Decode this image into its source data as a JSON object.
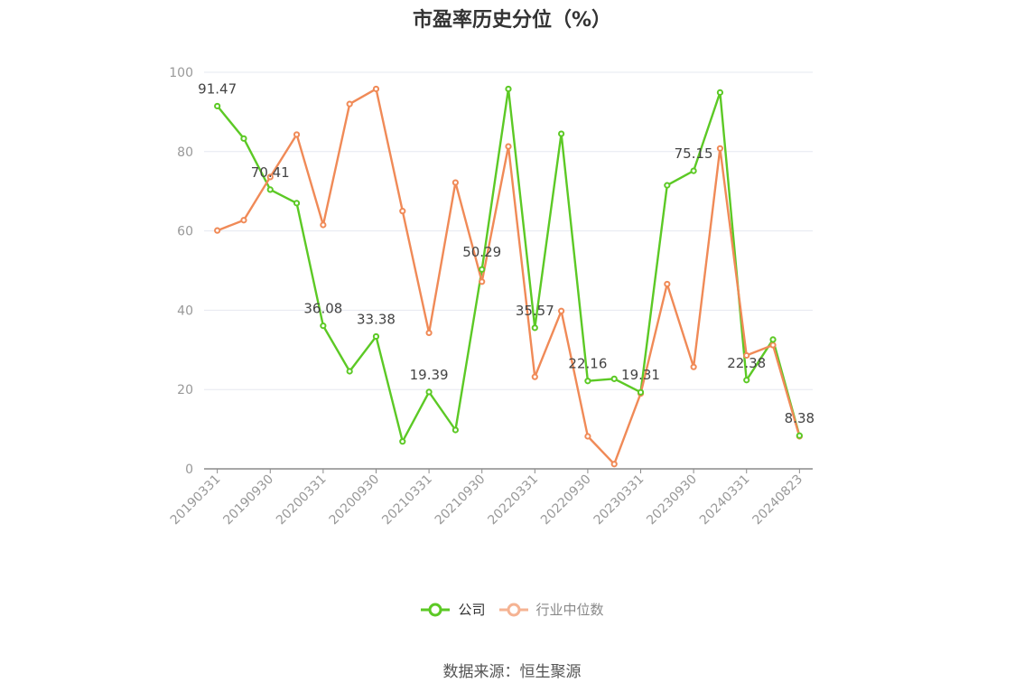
{
  "title": "市盈率历史分位（%）",
  "source": "数据来源：恒生聚源",
  "colors": {
    "company": "#5cc925",
    "industry": "#f08a57",
    "grid": "#e6e8f0",
    "axis": "#999999"
  },
  "legend": [
    {
      "label": "公司",
      "icon": "circle-line-icon"
    },
    {
      "label": "行业中位数",
      "icon": "circle-line-icon"
    }
  ],
  "chart_data": {
    "type": "line",
    "title": "市盈率历史分位（%）",
    "xlabel": "",
    "ylabel": "",
    "ylim": [
      0,
      100
    ],
    "yticks": [
      0,
      20,
      40,
      60,
      80,
      100
    ],
    "grid": true,
    "legend_position": "bottom",
    "x": [
      "20190331",
      "20190630",
      "20190930",
      "20191231",
      "20200331",
      "20200630",
      "20200930",
      "20201231",
      "20210331",
      "20210630",
      "20210930",
      "20211231",
      "20220331",
      "20220630",
      "20220930",
      "20221231",
      "20230331",
      "20230630",
      "20230930",
      "20231231",
      "20240331",
      "20240630",
      "20240823"
    ],
    "x_tick_labels": [
      "20190331",
      "20190930",
      "20200331",
      "20200930",
      "20210331",
      "20210930",
      "20220331",
      "20220930",
      "20230331",
      "20230930",
      "20240331",
      "20240823"
    ],
    "series": [
      {
        "name": "公司",
        "color": "#5cc925",
        "values": [
          91.47,
          83.3,
          70.41,
          67.0,
          36.08,
          24.6,
          33.38,
          6.9,
          19.39,
          9.8,
          50.29,
          95.8,
          35.57,
          84.5,
          22.16,
          22.7,
          19.31,
          71.5,
          75.15,
          94.9,
          22.38,
          32.6,
          8.38
        ],
        "labels": {
          "0": "91.47",
          "2": "70.41",
          "4": "36.08",
          "6": "33.38",
          "8": "19.39",
          "10": "50.29",
          "12": "35.57",
          "14": "22.16",
          "16": "19.31",
          "18": "75.15",
          "20": "22.38",
          "22": "8.38"
        }
      },
      {
        "name": "行业中位数",
        "color": "#f08a57",
        "values": [
          60.1,
          62.7,
          73.6,
          84.3,
          61.5,
          92.0,
          95.8,
          65.0,
          34.3,
          72.2,
          47.2,
          81.3,
          23.2,
          39.8,
          8.2,
          1.2,
          19.0,
          46.6,
          25.7,
          80.8,
          28.6,
          31.2,
          8.2
        ]
      }
    ]
  }
}
